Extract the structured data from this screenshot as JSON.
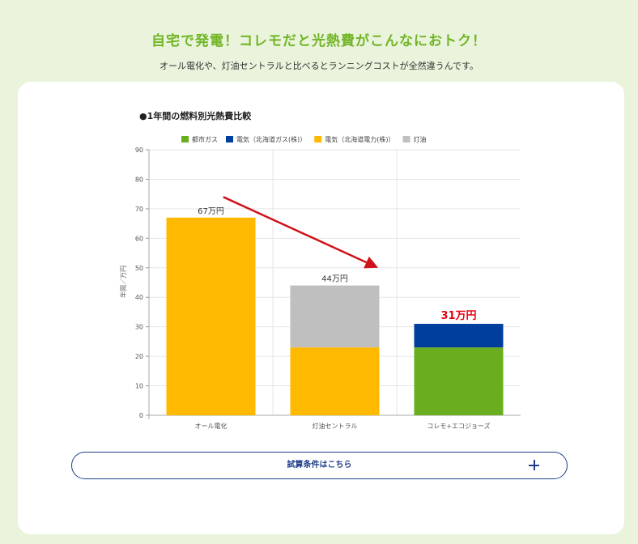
{
  "header": {
    "title": "自宅で発電！コレモだと光熱費がこんなにおトク！",
    "subtitle": "オール電化や、灯油セントラルと比べるとランニングコストが全然違うんです。"
  },
  "chart_data": {
    "type": "bar",
    "stacked": true,
    "title": "●1年間の燃料別光熱費比較",
    "xlabel": "",
    "ylabel": "年間／万円",
    "ylim": [
      0,
      90
    ],
    "yticks": [
      0,
      10,
      20,
      30,
      40,
      50,
      60,
      70,
      80,
      90
    ],
    "grid": true,
    "legend_position": "top",
    "categories": [
      "オール電化",
      "灯油セントラル",
      "コレモ+エコジョーズ"
    ],
    "series": [
      {
        "name": "都市ガス",
        "color": "#6aae1f",
        "values": [
          0,
          0,
          23
        ]
      },
      {
        "name": "電気（北海道ガス(株)）",
        "color": "#003e9e",
        "values": [
          0,
          0,
          8
        ]
      },
      {
        "name": "電気（北海道電力(株)）",
        "color": "#ffb900",
        "values": [
          67,
          23,
          0
        ]
      },
      {
        "name": "灯油",
        "color": "#bfbfbf",
        "values": [
          0,
          21,
          0
        ]
      }
    ],
    "total_labels": [
      "67万円",
      "44万円",
      "31万円"
    ],
    "total_label_colors": [
      "#333333",
      "#333333",
      "#e60012"
    ],
    "annotation": {
      "type": "arrow",
      "color": "#d0121b",
      "from_category": 0.6,
      "from_value": 74,
      "to_category": 1.85,
      "to_value": 50
    }
  },
  "button": {
    "label": "試算条件はこちら",
    "icon": "plus-icon"
  }
}
